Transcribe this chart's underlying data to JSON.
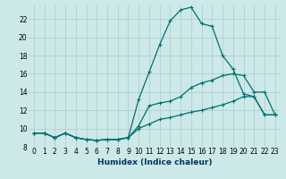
{
  "xlabel": "Humidex (Indice chaleur)",
  "x": [
    0,
    1,
    2,
    3,
    4,
    5,
    6,
    7,
    8,
    9,
    10,
    11,
    12,
    13,
    14,
    15,
    16,
    17,
    18,
    19,
    20,
    21,
    22,
    23
  ],
  "line1": [
    9.5,
    9.5,
    9.0,
    9.5,
    9.0,
    8.8,
    8.7,
    8.8,
    8.8,
    9.0,
    10.0,
    10.5,
    11.0,
    11.2,
    11.5,
    11.8,
    12.0,
    12.3,
    12.6,
    13.0,
    13.5,
    13.5,
    11.5,
    11.5
  ],
  "line2": [
    9.5,
    9.5,
    9.0,
    9.5,
    9.0,
    8.8,
    8.7,
    8.8,
    8.8,
    9.0,
    10.3,
    12.5,
    12.8,
    13.0,
    13.5,
    14.5,
    15.0,
    15.3,
    15.8,
    16.0,
    15.8,
    14.0,
    14.0,
    11.5
  ],
  "line3": [
    9.5,
    9.5,
    9.0,
    9.5,
    9.0,
    8.8,
    8.7,
    8.8,
    8.8,
    9.0,
    13.2,
    16.2,
    19.2,
    21.8,
    23.0,
    23.3,
    21.5,
    21.2,
    18.0,
    16.5,
    13.8,
    13.5,
    11.5,
    11.5
  ],
  "color": "#007070",
  "bg_color": "#cce8e8",
  "grid_color": "#aacccc",
  "ylim": [
    8,
    23.5
  ],
  "yticks": [
    8,
    10,
    12,
    14,
    16,
    18,
    20,
    22
  ],
  "xticks": [
    0,
    1,
    2,
    3,
    4,
    5,
    6,
    7,
    8,
    9,
    10,
    11,
    12,
    13,
    14,
    15,
    16,
    17,
    18,
    19,
    20,
    21,
    22,
    23
  ],
  "marker": "+",
  "markersize": 3,
  "linewidth": 0.9,
  "xlabel_fontsize": 6.5,
  "tick_fontsize": 5.5
}
